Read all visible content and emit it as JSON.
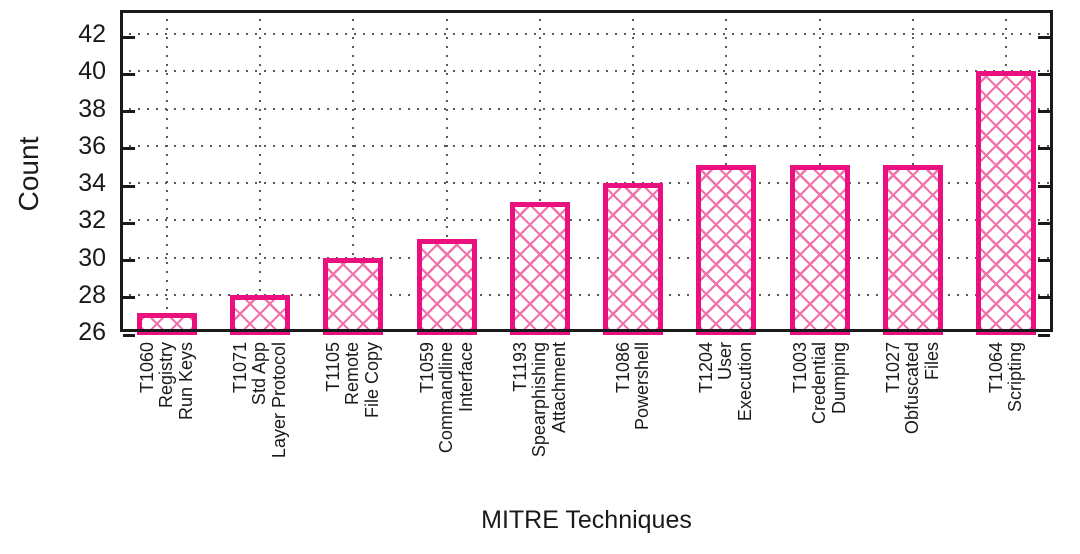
{
  "chart_data": {
    "type": "bar",
    "title": "",
    "xlabel": "MITRE Techniques",
    "ylabel": "Count",
    "categories": [
      [
        "T1060",
        "Registry",
        "Run Keys"
      ],
      [
        "T1071",
        "Std App",
        "Layer Protocol"
      ],
      [
        "T1105",
        "Remote",
        "File Copy"
      ],
      [
        "T1059",
        "Commandline",
        "Interface"
      ],
      [
        "T1193",
        "Spearphishing",
        "Attachment"
      ],
      [
        "T1086",
        "Powershell"
      ],
      [
        "T1204",
        "User",
        "Execution"
      ],
      [
        "T1003",
        "Credential",
        "Dumping"
      ],
      [
        "T1027",
        "Obfuscated",
        "Files"
      ],
      [
        "T1064",
        "Scripting"
      ]
    ],
    "values": [
      27,
      28,
      30,
      31,
      33,
      34,
      35,
      35,
      35,
      40
    ],
    "yticks": [
      26,
      28,
      30,
      32,
      34,
      36,
      38,
      40,
      42
    ],
    "ylim": [
      26,
      43.3
    ],
    "grid": true,
    "legend": "none",
    "hatch_pattern": "diagonal-crosshatch",
    "colors": {
      "bar_border": "#EA1080",
      "bar_hatch": "#F173AC",
      "bar_fill": "#FFFFFF",
      "axis": "#1a1a1a",
      "grid": "#5a5a5a",
      "text": "#1a1a1a"
    }
  }
}
